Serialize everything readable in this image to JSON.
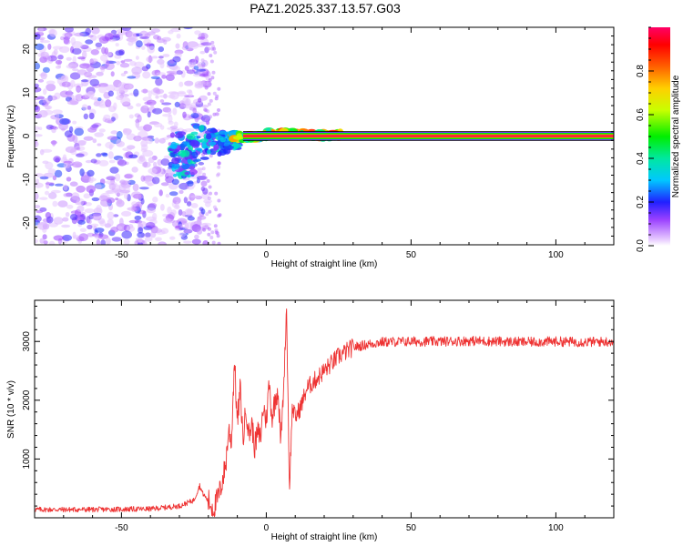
{
  "title": "PAZ1.2025.337.13.57.G03",
  "colorbar": {
    "label": "Normalized spectral amplitude",
    "ticks": [
      "0.0",
      "0.2",
      "0.4",
      "0.6",
      "0.8"
    ],
    "tick_values": [
      0.0,
      0.2,
      0.4,
      0.6,
      0.8
    ],
    "range": [
      0.0,
      1.0
    ]
  },
  "chart_data": [
    {
      "type": "heatmap",
      "name": "spectrogram",
      "xlabel": "Height of straight line (km)",
      "ylabel": "Frequency (Hz)",
      "xlim": [
        -80,
        120
      ],
      "ylim": [
        -25,
        25
      ],
      "xticks": [
        -50,
        0,
        50,
        100
      ],
      "xtick_labels": [
        "-50",
        "0",
        "50",
        "100"
      ],
      "yticks": [
        -20,
        -10,
        0,
        10,
        20
      ],
      "ytick_labels": [
        "-20",
        "-10",
        "0",
        "10",
        "20"
      ],
      "description_points": [
        {
          "x_range": [
            -80,
            -20
          ],
          "freq_spread_hz": 25,
          "amplitude": "low (0.05-0.25), scattered"
        },
        {
          "x_range": [
            -32,
            -8
          ],
          "freq_center_hz": -2,
          "amplitude": "0.2-0.4"
        },
        {
          "x_range": [
            -12,
            25
          ],
          "freq_center_hz": 0.5,
          "amplitude": "0.4-0.9"
        },
        {
          "x_range": [
            25,
            120
          ],
          "freq_center_hz": 0,
          "amplitude": "0.9-1.0 (narrow line)"
        }
      ]
    },
    {
      "type": "line",
      "name": "snr",
      "xlabel": "Height of straight line (km)",
      "ylabel": "SNR (10 * v/v)",
      "xlim": [
        -80,
        120
      ],
      "ylim": [
        0,
        3700
      ],
      "xticks": [
        -50,
        0,
        50,
        100
      ],
      "xtick_labels": [
        "-50",
        "0",
        "50",
        "100"
      ],
      "yticks": [
        1000,
        2000,
        3000
      ],
      "ytick_labels": [
        "1000",
        "2000",
        "3000"
      ],
      "color": "#ee3333",
      "series": [
        {
          "name": "SNR",
          "x": [
            -80,
            -60,
            -40,
            -30,
            -25,
            -23,
            -22,
            -20,
            -18,
            -16,
            -14,
            -13,
            -12,
            -11,
            -10,
            -9,
            -8,
            -7,
            -6,
            -5,
            -4,
            -3,
            -2,
            -1,
            0,
            1,
            2,
            3,
            4,
            5,
            6,
            7,
            8,
            9,
            10,
            12,
            14,
            16,
            18,
            20,
            25,
            30,
            35,
            40,
            50,
            60,
            70,
            80,
            90,
            100,
            110,
            120
          ],
          "values": [
            140,
            140,
            150,
            200,
            300,
            550,
            420,
            280,
            150,
            450,
            900,
            1500,
            1300,
            2700,
            1600,
            2200,
            1300,
            1900,
            1400,
            1600,
            1200,
            1450,
            1350,
            1900,
            1650,
            2300,
            1700,
            2000,
            2200,
            1300,
            2200,
            3600,
            500,
            1900,
            1700,
            1900,
            2200,
            2300,
            2400,
            2500,
            2750,
            2900,
            2950,
            2990,
            3000,
            3000,
            3010,
            3000,
            2990,
            3000,
            2990,
            3000
          ]
        }
      ]
    }
  ]
}
